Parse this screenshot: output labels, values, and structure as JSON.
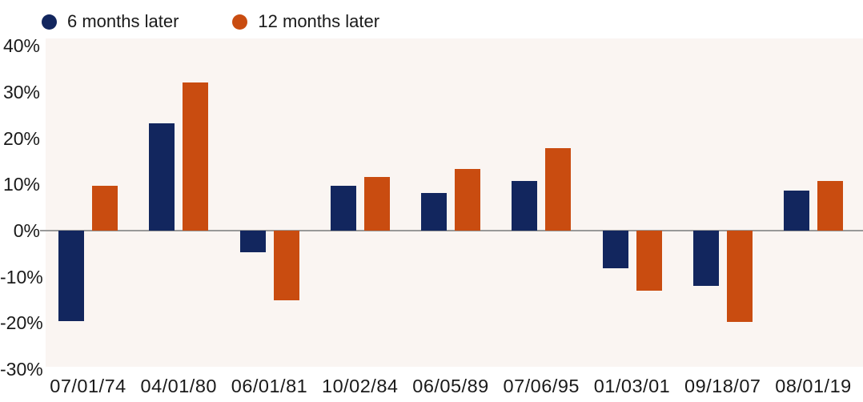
{
  "chart_data": {
    "type": "bar",
    "categories": [
      "07/01/74",
      "04/01/80",
      "06/01/81",
      "10/02/84",
      "06/05/89",
      "07/06/95",
      "01/03/01",
      "09/18/07",
      "08/01/19"
    ],
    "series": [
      {
        "name": "6 months later",
        "color": "#12265e",
        "values": [
          -19.6,
          23.3,
          -4.6,
          9.7,
          8.1,
          10.7,
          -8.1,
          -11.9,
          8.6
        ]
      },
      {
        "name": "12 months later",
        "color": "#c94c10",
        "values": [
          9.7,
          32.0,
          -15.0,
          11.6,
          13.3,
          17.8,
          -13.0,
          -19.8,
          10.7
        ]
      }
    ],
    "title": "",
    "xlabel": "",
    "ylabel": "",
    "ylim": [
      -30,
      40
    ],
    "yticks": [
      40,
      30,
      20,
      10,
      0,
      -10,
      -20,
      -30
    ],
    "y_tick_suffix": "%",
    "grid": false,
    "legend_position": "top-left",
    "plot_background": "#faf5f2",
    "zero_line_color": "#999999",
    "text_color": "#1a1a1a"
  }
}
